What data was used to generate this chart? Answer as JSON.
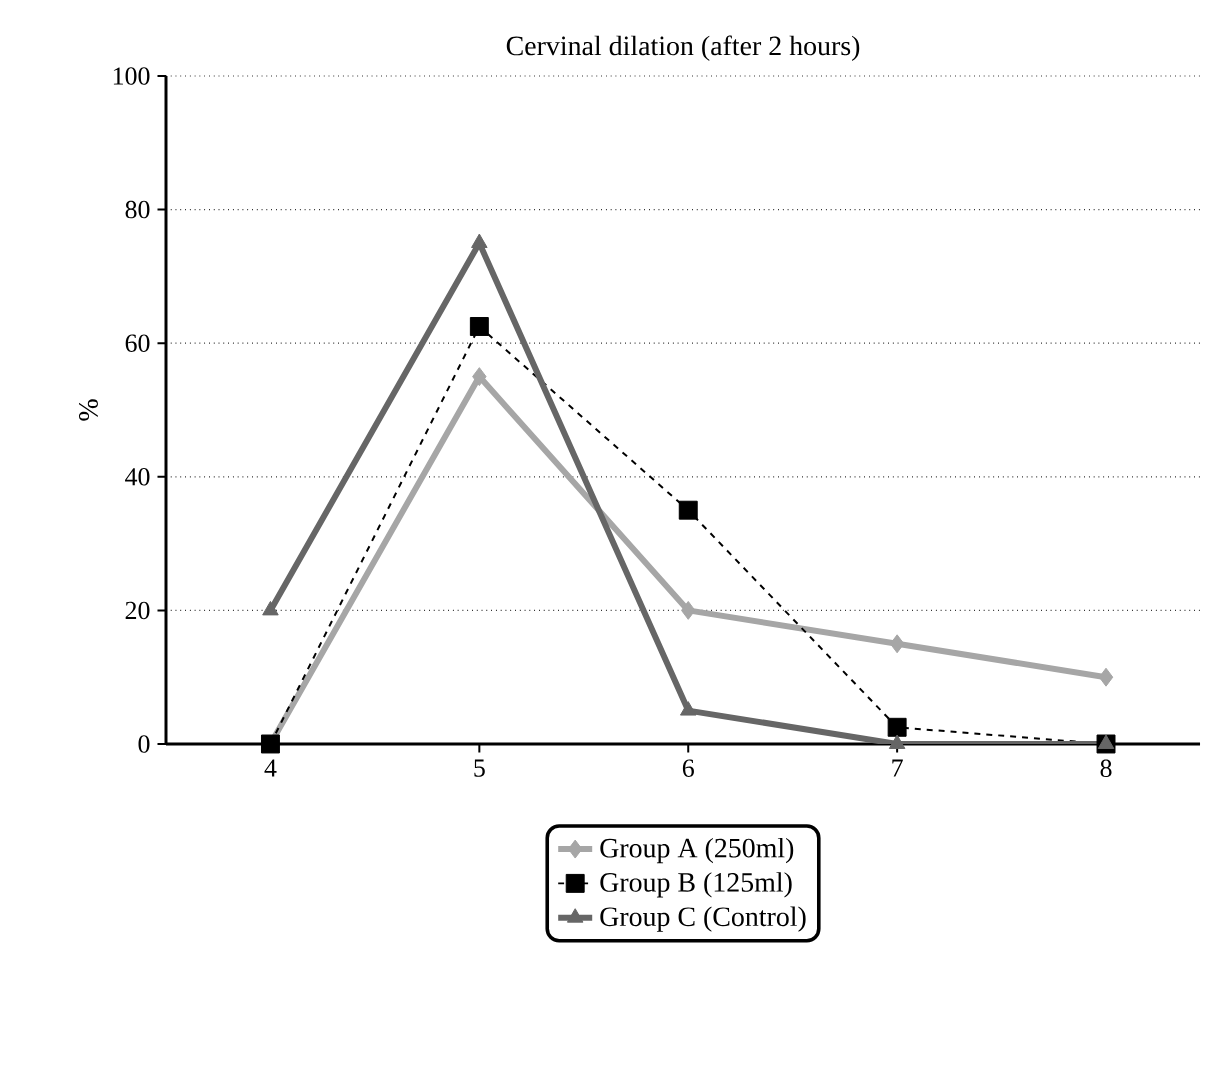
{
  "chart_data": {
    "type": "line",
    "title": "Cervinal dilation (after 2 hours)",
    "ylabel": "%",
    "categories": [
      "4",
      "5",
      "6",
      "7",
      "8"
    ],
    "series": [
      {
        "name": "Group A (250ml)",
        "color": "#a6a6a6",
        "values": [
          0,
          55,
          20,
          15,
          10
        ],
        "marker": "diamond",
        "line_style": "solid"
      },
      {
        "name": "Group B (125ml)",
        "color": "#000000",
        "values": [
          0,
          62.5,
          35,
          2.5,
          0
        ],
        "marker": "square",
        "line_style": "dashed"
      },
      {
        "name": "Group C (Control)",
        "color": "#666666",
        "values": [
          20,
          75,
          5,
          0,
          0
        ],
        "marker": "triangle",
        "line_style": "solid"
      }
    ],
    "ylim": [
      0,
      100
    ],
    "yticks": [
      0,
      20,
      40,
      60,
      80,
      100
    ],
    "grid": "y",
    "legend": "bottom"
  }
}
